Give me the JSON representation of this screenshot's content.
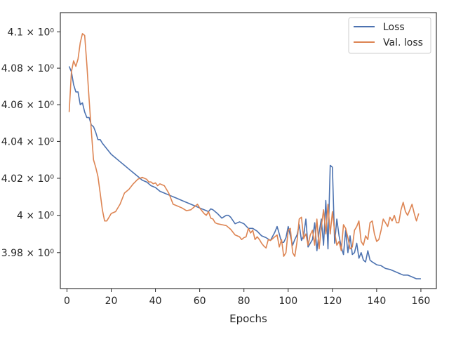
{
  "chart_data": {
    "type": "line",
    "xlabel": "Epochs",
    "ylabel": "",
    "xlim": [
      -3,
      167
    ],
    "ylim": [
      3.9608,
      4.1106
    ],
    "x_ticks": [
      0,
      20,
      40,
      60,
      80,
      100,
      120,
      140,
      160
    ],
    "y_ticks": [
      {
        "value": 3.98,
        "label": "3.98 × 10⁰"
      },
      {
        "value": 4.0,
        "label": "4 × 10⁰"
      },
      {
        "value": 4.02,
        "label": "4.02 × 10⁰"
      },
      {
        "value": 4.04,
        "label": "4.04 × 10⁰"
      },
      {
        "value": 4.06,
        "label": "4.06 × 10⁰"
      },
      {
        "value": 4.08,
        "label": "4.08 × 10⁰"
      },
      {
        "value": 4.1,
        "label": "4.1 × 10⁰"
      }
    ],
    "y_scale": "log",
    "grid": false,
    "legend_position": "top-right",
    "series": [
      {
        "name": "Loss",
        "color": "#4c72b0",
        "points": [
          [
            1,
            4.081
          ],
          [
            2,
            4.078
          ],
          [
            3,
            4.071
          ],
          [
            4,
            4.067
          ],
          [
            5,
            4.067
          ],
          [
            6,
            4.06
          ],
          [
            7,
            4.061
          ],
          [
            8,
            4.056
          ],
          [
            9,
            4.053
          ],
          [
            10,
            4.053
          ],
          [
            11,
            4.049
          ],
          [
            12,
            4.048
          ],
          [
            13,
            4.045
          ],
          [
            14,
            4.041
          ],
          [
            15,
            4.041
          ],
          [
            16,
            4.039
          ],
          [
            18,
            4.036
          ],
          [
            20,
            4.033
          ],
          [
            22,
            4.031
          ],
          [
            24,
            4.029
          ],
          [
            26,
            4.027
          ],
          [
            28,
            4.025
          ],
          [
            30,
            4.023
          ],
          [
            32,
            4.021
          ],
          [
            34,
            4.019
          ],
          [
            36,
            4.018
          ],
          [
            38,
            4.016
          ],
          [
            40,
            4.015
          ],
          [
            42,
            4.013
          ],
          [
            44,
            4.012
          ],
          [
            46,
            4.011
          ],
          [
            48,
            4.01
          ],
          [
            50,
            4.009
          ],
          [
            52,
            4.008
          ],
          [
            54,
            4.007
          ],
          [
            56,
            4.006
          ],
          [
            58,
            4.005
          ],
          [
            60,
            4.004
          ],
          [
            62,
            4.003
          ],
          [
            64,
            4.002
          ],
          [
            65,
            4.0035
          ],
          [
            66,
            4.003
          ],
          [
            68,
            4.001
          ],
          [
            70,
            3.9985
          ],
          [
            72,
            4.0
          ],
          [
            73,
            4.0
          ],
          [
            74,
            3.999
          ],
          [
            76,
            3.9955
          ],
          [
            78,
            3.9965
          ],
          [
            80,
            3.9955
          ],
          [
            82,
            3.993
          ],
          [
            84,
            3.993
          ],
          [
            86,
            3.9915
          ],
          [
            88,
            3.989
          ],
          [
            90,
            3.988
          ],
          [
            92,
            3.9865
          ],
          [
            94,
            3.991
          ],
          [
            95,
            3.994
          ],
          [
            96,
            3.99
          ],
          [
            97,
            3.9855
          ],
          [
            98,
            3.9855
          ],
          [
            99,
            3.988
          ],
          [
            100,
            3.994
          ],
          [
            101,
            3.989
          ],
          [
            102,
            3.984
          ],
          [
            103,
            3.987
          ],
          [
            104,
            3.9895
          ],
          [
            105,
            3.995
          ],
          [
            106,
            3.9865
          ],
          [
            107,
            3.989
          ],
          [
            108,
            3.998
          ],
          [
            109,
            3.983
          ],
          [
            110,
            3.985
          ],
          [
            111,
            3.987
          ],
          [
            112,
            3.996
          ],
          [
            113,
            3.981
          ],
          [
            114,
            3.991
          ],
          [
            115,
            3.998
          ],
          [
            116,
            3.984
          ],
          [
            117,
            4.008
          ],
          [
            118,
            3.982
          ],
          [
            119,
            4.027
          ],
          [
            120,
            4.026
          ],
          [
            121,
            3.985
          ],
          [
            122,
            3.998
          ],
          [
            123,
            3.989
          ],
          [
            124,
            3.983
          ],
          [
            125,
            3.979
          ],
          [
            126,
            3.992
          ],
          [
            127,
            3.98
          ],
          [
            128,
            3.989
          ],
          [
            129,
            3.979
          ],
          [
            130,
            3.98
          ],
          [
            131,
            3.985
          ],
          [
            132,
            3.977
          ],
          [
            133,
            3.98
          ],
          [
            134,
            3.976
          ],
          [
            135,
            3.975
          ],
          [
            136,
            3.981
          ],
          [
            137,
            3.976
          ],
          [
            138,
            3.975
          ],
          [
            140,
            3.9735
          ],
          [
            142,
            3.973
          ],
          [
            144,
            3.9715
          ],
          [
            146,
            3.971
          ],
          [
            148,
            3.97
          ],
          [
            150,
            3.969
          ],
          [
            152,
            3.968
          ],
          [
            154,
            3.968
          ],
          [
            156,
            3.967
          ],
          [
            158,
            3.966
          ],
          [
            160,
            3.966
          ]
        ]
      },
      {
        "name": "Val. loss",
        "color": "#dd8452",
        "points": [
          [
            1,
            4.056
          ],
          [
            2,
            4.078
          ],
          [
            3,
            4.084
          ],
          [
            4,
            4.081
          ],
          [
            5,
            4.085
          ],
          [
            6,
            4.094
          ],
          [
            7,
            4.099
          ],
          [
            8,
            4.098
          ],
          [
            9,
            4.082
          ],
          [
            10,
            4.063
          ],
          [
            11,
            4.046
          ],
          [
            12,
            4.03
          ],
          [
            13,
            4.026
          ],
          [
            14,
            4.021
          ],
          [
            15,
            4.012
          ],
          [
            16,
            4.003
          ],
          [
            17,
            3.997
          ],
          [
            18,
            3.997
          ],
          [
            19,
            3.999
          ],
          [
            20,
            4.001
          ],
          [
            22,
            4.002
          ],
          [
            24,
            4.006
          ],
          [
            26,
            4.012
          ],
          [
            28,
            4.014
          ],
          [
            30,
            4.017
          ],
          [
            32,
            4.0195
          ],
          [
            34,
            4.0205
          ],
          [
            36,
            4.0195
          ],
          [
            37,
            4.018
          ],
          [
            38,
            4.018
          ],
          [
            39,
            4.017
          ],
          [
            40,
            4.0175
          ],
          [
            41,
            4.016
          ],
          [
            42,
            4.017
          ],
          [
            44,
            4.016
          ],
          [
            46,
            4.012
          ],
          [
            48,
            4.006
          ],
          [
            50,
            4.005
          ],
          [
            52,
            4.004
          ],
          [
            54,
            4.0025
          ],
          [
            56,
            4.003
          ],
          [
            58,
            4.005
          ],
          [
            59,
            4.006
          ],
          [
            60,
            4.004
          ],
          [
            62,
            4.001
          ],
          [
            63,
            4.0
          ],
          [
            64,
            4.002
          ],
          [
            65,
            3.9985
          ],
          [
            66,
            3.998
          ],
          [
            67,
            3.996
          ],
          [
            68,
            3.9955
          ],
          [
            70,
            3.995
          ],
          [
            72,
            3.9945
          ],
          [
            74,
            3.9925
          ],
          [
            76,
            3.9895
          ],
          [
            78,
            3.9885
          ],
          [
            79,
            3.987
          ],
          [
            80,
            3.988
          ],
          [
            81,
            3.9885
          ],
          [
            82,
            3.993
          ],
          [
            83,
            3.9905
          ],
          [
            84,
            3.992
          ],
          [
            85,
            3.987
          ],
          [
            86,
            3.9885
          ],
          [
            87,
            3.987
          ],
          [
            88,
            3.985
          ],
          [
            89,
            3.9835
          ],
          [
            90,
            3.9825
          ],
          [
            91,
            3.987
          ],
          [
            92,
            3.9865
          ],
          [
            93,
            3.9875
          ],
          [
            94,
            3.9885
          ],
          [
            95,
            3.9895
          ],
          [
            96,
            3.983
          ],
          [
            97,
            3.987
          ],
          [
            98,
            3.978
          ],
          [
            99,
            3.98
          ],
          [
            100,
            3.992
          ],
          [
            101,
            3.993
          ],
          [
            102,
            3.98
          ],
          [
            103,
            3.978
          ],
          [
            104,
            3.986
          ],
          [
            105,
            3.998
          ],
          [
            106,
            3.999
          ],
          [
            107,
            3.9875
          ],
          [
            108,
            3.99
          ],
          [
            109,
            3.984
          ],
          [
            110,
            3.9895
          ],
          [
            111,
            3.992
          ],
          [
            112,
            3.984
          ],
          [
            113,
            3.998
          ],
          [
            114,
            3.982
          ],
          [
            115,
            3.994
          ],
          [
            116,
            4.003
          ],
          [
            117,
            3.99
          ],
          [
            118,
            4.006
          ],
          [
            119,
            3.99
          ],
          [
            120,
            4.002
          ],
          [
            121,
            3.991
          ],
          [
            122,
            3.984
          ],
          [
            123,
            3.986
          ],
          [
            124,
            3.981
          ],
          [
            125,
            3.995
          ],
          [
            126,
            3.993
          ],
          [
            127,
            3.988
          ],
          [
            128,
            3.982
          ],
          [
            129,
            3.983
          ],
          [
            130,
            3.992
          ],
          [
            131,
            3.994
          ],
          [
            132,
            3.997
          ],
          [
            133,
            3.986
          ],
          [
            134,
            3.984
          ],
          [
            135,
            3.989
          ],
          [
            136,
            3.987
          ],
          [
            137,
            3.996
          ],
          [
            138,
            3.997
          ],
          [
            139,
            3.99
          ],
          [
            140,
            3.986
          ],
          [
            141,
            3.987
          ],
          [
            142,
            3.992
          ],
          [
            143,
            3.998
          ],
          [
            144,
            3.996
          ],
          [
            145,
            3.994
          ],
          [
            146,
            3.999
          ],
          [
            147,
            3.997
          ],
          [
            148,
            4.0
          ],
          [
            149,
            3.996
          ],
          [
            150,
            3.996
          ],
          [
            151,
            4.003
          ],
          [
            152,
            4.007
          ],
          [
            153,
            4.002
          ],
          [
            154,
            4.0
          ],
          [
            155,
            4.003
          ],
          [
            156,
            4.006
          ],
          [
            157,
            4.001
          ],
          [
            158,
            3.997
          ],
          [
            159,
            4.001
          ]
        ]
      }
    ]
  }
}
